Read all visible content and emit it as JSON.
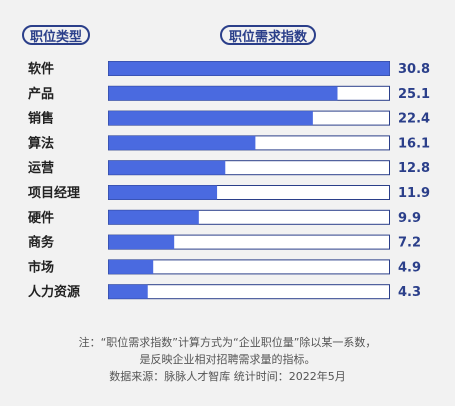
{
  "header": {
    "category_label": "职位类型",
    "index_label": "职位需求指数"
  },
  "chart_data": {
    "type": "bar",
    "orientation": "horizontal",
    "categories": [
      "软件",
      "产品",
      "销售",
      "算法",
      "运营",
      "项目经理",
      "硬件",
      "商务",
      "市场",
      "人力资源"
    ],
    "values": [
      30.8,
      25.1,
      22.4,
      16.1,
      12.8,
      11.9,
      9.9,
      7.2,
      4.9,
      4.3
    ],
    "value_labels": [
      "30.8",
      "25.1",
      "22.4",
      "16.1",
      "12.8",
      "11.9",
      "9.9",
      "7.2",
      "4.9",
      "4.3"
    ],
    "xlim": [
      0,
      30.8
    ],
    "bar_color": "#4a6ae0",
    "track_border_color": "#2b3f8a",
    "value_color": "#2b3f8a",
    "grid": false
  },
  "notes": {
    "line1": "注：“职位需求指数”计算方式为“企业职位量”除以某一系数，",
    "line2": "是反映企业相对招聘需求量的指标。",
    "line3": "数据来源：脉脉人才智库    统计时间：2022年5月"
  }
}
